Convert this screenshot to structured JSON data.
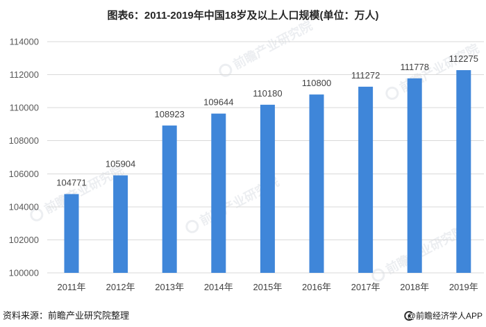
{
  "chart_data": {
    "type": "bar",
    "title": "图表6：2011-2019年中国18岁及以上人口规模(单位：万人)",
    "categories": [
      "2011年",
      "2012年",
      "2013年",
      "2014年",
      "2015年",
      "2016年",
      "2017年",
      "2018年",
      "2019年"
    ],
    "values": [
      104771,
      105904,
      108923,
      109644,
      110180,
      110800,
      111272,
      111778,
      112275
    ],
    "ylim": [
      100000,
      114000
    ],
    "yticks": [
      100000,
      102000,
      104000,
      106000,
      108000,
      110000,
      112000,
      114000
    ],
    "grid": true,
    "data_labels": true,
    "bar_color": "#3f86d9"
  },
  "footer": {
    "source": "资料来源：前瞻产业研究院整理",
    "brand": "@前瞻经济学人APP",
    "brand_icon": "qianzhan-logo-icon"
  },
  "watermark": {
    "text": "前瞻产业研究院",
    "icon": "qianzhan-logo-icon"
  }
}
